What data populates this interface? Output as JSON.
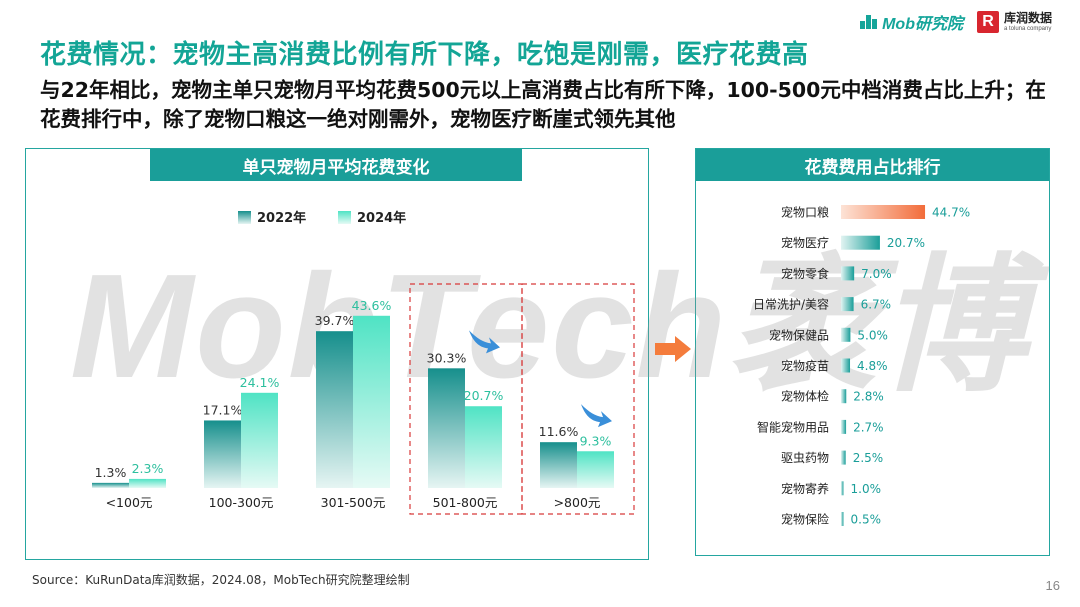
{
  "header": {
    "mob_logo_text": "Mob研究院",
    "kr_logo_mark": "R",
    "kr_logo_name": "库润数据",
    "kr_logo_sub": "a toluna company"
  },
  "title": "花费情况：宠物主高消费比例有所下降，吃饱是刚需，医疗花费高",
  "subtitle": "与22年相比，宠物主单只宠物月平均花费500元以上高消费占比有所下降，100-500元中档消费占比上升；在花费排行中，除了宠物口粮这一绝对刚需外，宠物医疗断崖式领先其他",
  "watermark": "MobTech袤博",
  "colors": {
    "accent": "#13a596",
    "header_bg": "#1a9e99",
    "bar_2022_top": "#168f8c",
    "bar_2024_top": "#4fe3c4",
    "rank_top": "#f26c3a",
    "highlight_box": "#d83a3a",
    "blue_arrow": "#3a8fd9",
    "orange_arrow": "#f47c3c"
  },
  "source": "Source：KuRunData库润数据，2024.08，MobTech研究院整理绘制",
  "page_number": "16",
  "chart_data": [
    {
      "type": "bar",
      "title": "单只宠物月平均花费变化",
      "categories": [
        "<100元",
        "100-300元",
        "301-500元",
        "501-800元",
        ">800元"
      ],
      "series": [
        {
          "name": "2022年",
          "values": [
            1.3,
            17.1,
            39.7,
            30.3,
            11.6
          ],
          "labels": [
            "1.3%",
            "17.1%",
            "39.7%",
            "30.3%",
            "11.6%"
          ]
        },
        {
          "name": "2024年",
          "values": [
            2.3,
            24.1,
            43.6,
            20.7,
            9.3
          ],
          "labels": [
            "2.3%",
            "24.1%",
            "43.6%",
            "20.7%",
            "9.3%"
          ]
        }
      ],
      "unit": "%",
      "ylim": [
        0,
        50
      ],
      "grid": false,
      "legend": "top-left",
      "highlighted_categories": [
        "501-800元",
        ">800元"
      ],
      "decreasing_arrow_categories": [
        "501-800元",
        ">800元"
      ]
    },
    {
      "type": "bar",
      "orientation": "horizontal",
      "title": "花费费用占比排行",
      "categories": [
        "宠物口粮",
        "宠物医疗",
        "宠物零食",
        "日常洗护/美容",
        "宠物保健品",
        "宠物疫苗",
        "宠物体检",
        "智能宠物用品",
        "驱虫药物",
        "宠物寄养",
        "宠物保险"
      ],
      "values": [
        44.7,
        20.7,
        7.0,
        6.7,
        5.0,
        4.8,
        2.8,
        2.7,
        2.5,
        1.0,
        0.5
      ],
      "labels": [
        "44.7%",
        "20.7%",
        "7.0%",
        "6.7%",
        "5.0%",
        "4.8%",
        "2.8%",
        "2.7%",
        "2.5%",
        "1.0%",
        "0.5%"
      ],
      "unit": "%",
      "xlim": [
        0,
        50
      ],
      "grid": false
    }
  ]
}
